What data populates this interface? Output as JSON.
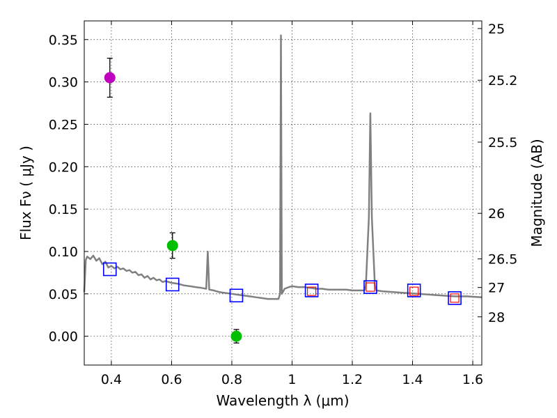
{
  "chart_data": {
    "type": "scatter",
    "xlabel": "Wavelength  λ (μm)",
    "ylabel": "Flux  Fν  ( μJy )",
    "ylabel_right": "Magnitude (AB)",
    "xlim": [
      0.31,
      1.63
    ],
    "ylim": [
      -0.034,
      0.372
    ],
    "grid": true,
    "x_ticks": [
      0.4,
      0.6,
      0.8,
      1.0,
      1.2,
      1.4,
      1.6
    ],
    "x_tick_labels": [
      "0.4",
      "0.6",
      "0.8",
      "1",
      "1.2",
      "1.4",
      "1.6"
    ],
    "y_ticks": [
      0.0,
      0.05,
      0.1,
      0.15,
      0.2,
      0.25,
      0.3,
      0.35
    ],
    "y_tick_labels": [
      "0.00",
      "0.05",
      "0.10",
      "0.15",
      "0.20",
      "0.25",
      "0.30",
      "0.35"
    ],
    "right_ticks": [
      {
        "label": "25",
        "flux": 0.363
      },
      {
        "label": "25.2",
        "flux": 0.302
      },
      {
        "label": "25.5",
        "flux": 0.229
      },
      {
        "label": "26",
        "flux": 0.145
      },
      {
        "label": "26.5",
        "flux": 0.0912
      },
      {
        "label": "27",
        "flux": 0.0575
      },
      {
        "label": "28",
        "flux": 0.0229
      }
    ],
    "colors": {
      "template": "#808080",
      "magenta": "#bf00bf",
      "green": "#00bf00",
      "model_box": "#0000ff",
      "obs_box": "#ff0000",
      "errorbar": "#000000"
    },
    "template_spectrum": {
      "x": [
        0.31,
        0.315,
        0.32,
        0.33,
        0.34,
        0.35,
        0.36,
        0.37,
        0.38,
        0.39,
        0.4,
        0.41,
        0.42,
        0.43,
        0.44,
        0.45,
        0.46,
        0.47,
        0.48,
        0.49,
        0.5,
        0.51,
        0.52,
        0.53,
        0.54,
        0.55,
        0.56,
        0.57,
        0.58,
        0.6,
        0.62,
        0.64,
        0.66,
        0.68,
        0.7,
        0.715,
        0.72,
        0.725,
        0.74,
        0.76,
        0.78,
        0.8,
        0.82,
        0.84,
        0.86,
        0.88,
        0.9,
        0.92,
        0.94,
        0.955,
        0.96,
        0.963,
        0.966,
        0.969,
        0.975,
        0.99,
        1.0,
        1.02,
        1.04,
        1.06,
        1.08,
        1.1,
        1.12,
        1.14,
        1.16,
        1.18,
        1.2,
        1.22,
        1.24,
        1.245,
        1.255,
        1.26,
        1.265,
        1.275,
        1.28,
        1.3,
        1.34,
        1.38,
        1.42,
        1.46,
        1.5,
        1.54,
        1.58,
        1.63
      ],
      "y": [
        0.052,
        0.09,
        0.094,
        0.091,
        0.095,
        0.089,
        0.092,
        0.085,
        0.088,
        0.081,
        0.083,
        0.08,
        0.082,
        0.079,
        0.08,
        0.077,
        0.078,
        0.075,
        0.076,
        0.072,
        0.073,
        0.069,
        0.071,
        0.067,
        0.069,
        0.066,
        0.067,
        0.064,
        0.065,
        0.063,
        0.062,
        0.06,
        0.059,
        0.058,
        0.057,
        0.056,
        0.1,
        0.055,
        0.054,
        0.052,
        0.051,
        0.05,
        0.049,
        0.048,
        0.047,
        0.046,
        0.045,
        0.044,
        0.044,
        0.044,
        0.05,
        0.355,
        0.05,
        0.052,
        0.056,
        0.058,
        0.059,
        0.058,
        0.058,
        0.057,
        0.056,
        0.056,
        0.055,
        0.055,
        0.055,
        0.055,
        0.054,
        0.054,
        0.054,
        0.06,
        0.14,
        0.263,
        0.14,
        0.06,
        0.054,
        0.053,
        0.052,
        0.051,
        0.05,
        0.049,
        0.048,
        0.047,
        0.047,
        0.046
      ]
    },
    "photometry": [
      {
        "x": 0.395,
        "y": 0.305,
        "err": 0.023,
        "color": "magenta"
      },
      {
        "x": 0.603,
        "y": 0.107,
        "err": 0.015,
        "color": "green"
      },
      {
        "x": 0.815,
        "y": 0.0,
        "err": 0.008,
        "color": "green"
      }
    ],
    "model_points": [
      {
        "x": 0.395,
        "y": 0.079
      },
      {
        "x": 0.603,
        "y": 0.061
      },
      {
        "x": 0.815,
        "y": 0.048
      },
      {
        "x": 1.065,
        "y": 0.054
      },
      {
        "x": 1.26,
        "y": 0.058
      },
      {
        "x": 1.405,
        "y": 0.054
      },
      {
        "x": 1.54,
        "y": 0.045
      }
    ],
    "observed_points": [
      {
        "x": 1.065,
        "y": 0.053
      },
      {
        "x": 1.26,
        "y": 0.058
      },
      {
        "x": 1.405,
        "y": 0.053
      },
      {
        "x": 1.54,
        "y": 0.045
      }
    ]
  }
}
